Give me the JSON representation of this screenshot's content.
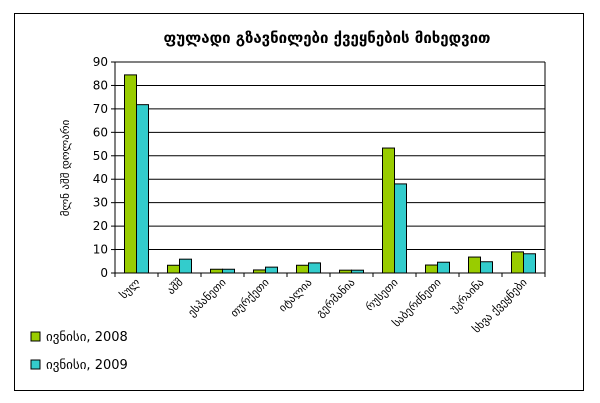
{
  "chart_data": {
    "type": "bar",
    "title": "ფულადი გზავნილები ქვეყნების მიხედვით",
    "ylabel": "მლნ აშშ დოლარი",
    "xlabel": "",
    "ylim": [
      0,
      90
    ],
    "yticks": [
      0,
      10,
      20,
      30,
      40,
      50,
      60,
      70,
      80,
      90
    ],
    "grid": true,
    "legend_position": "bottom-left",
    "categories": [
      "სულ",
      "აშშ",
      "ესპანეთი",
      "თურქეთი",
      "იტალია",
      "გერმანია",
      "რუსეთი",
      "საბერძნეთი",
      "უკრაინა",
      "სხვა ქვეყნები"
    ],
    "series": [
      {
        "name": "ივნისი, 2008",
        "color": "#99cc00",
        "values": [
          84.5,
          3.3,
          1.6,
          1.3,
          3.3,
          1.2,
          53.3,
          3.4,
          6.8,
          9.0
        ]
      },
      {
        "name": "ივნისი, 2009",
        "color": "#33cccc",
        "values": [
          71.8,
          5.9,
          1.6,
          2.5,
          4.3,
          1.2,
          38.0,
          4.6,
          4.8,
          8.2
        ]
      }
    ]
  }
}
